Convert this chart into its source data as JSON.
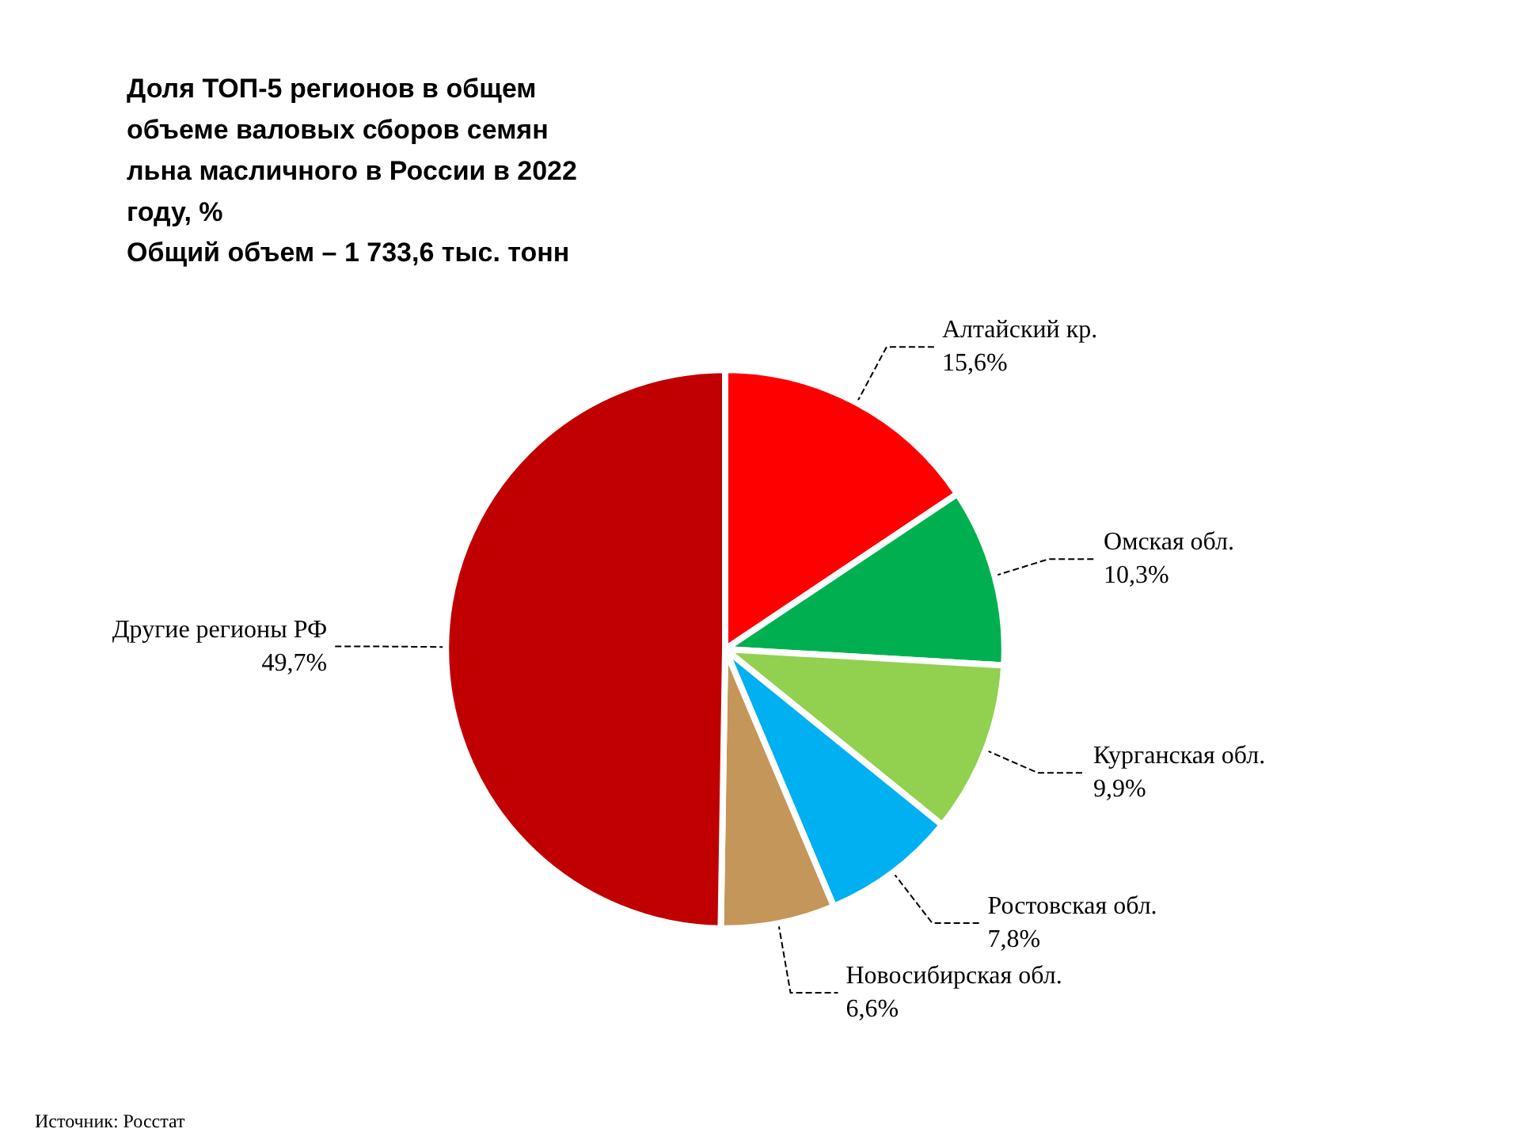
{
  "chart_data": {
    "type": "pie",
    "title": "Доля ТОП-5 регионов в общем объеме валовых сборов семян льна масличного в России в 2022 году, %",
    "subtitle": "Общий объем – 1 733,6 тыс. тонн",
    "categories": [
      "Алтайский кр.",
      "Омская обл.",
      "Курганская обл.",
      "Ростовская обл.",
      "Новосибирская обл.",
      "Другие регионы РФ"
    ],
    "values": [
      15.6,
      10.3,
      9.9,
      7.8,
      6.6,
      49.7
    ],
    "value_labels": [
      "15,6%",
      "10,3%",
      "9,9%",
      "7,8%",
      "6,6%",
      "49,7%"
    ],
    "colors": [
      "#ff0000",
      "#00b050",
      "#92d050",
      "#00b0f0",
      "#c4965a",
      "#c00000"
    ],
    "annotations": [
      "Источник: Росстат"
    ],
    "legend": false
  }
}
